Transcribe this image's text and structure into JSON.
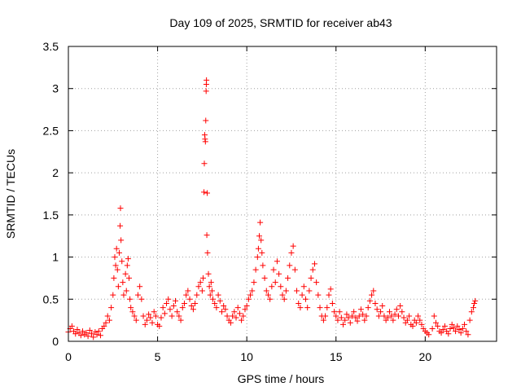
{
  "chart_data": {
    "type": "scatter",
    "title": "Day 109 of 2025, SRMTID for receiver ab43",
    "xlabel": "GPS time / hours",
    "ylabel": "SRMTID / TECUs",
    "xlim": [
      0,
      24
    ],
    "ylim": [
      0,
      3.5
    ],
    "x_ticks": [
      0,
      5,
      10,
      15,
      20
    ],
    "x_tick_labels": [
      "0",
      "5",
      "10",
      "15",
      "20"
    ],
    "y_ticks": [
      0,
      0.5,
      1,
      1.5,
      2,
      2.5,
      3,
      3.5
    ],
    "y_tick_labels": [
      "0",
      "0.5",
      "1",
      "1.5",
      "2",
      "2.5",
      "3",
      "3.5"
    ],
    "grid": true,
    "marker": "+",
    "color": "#ff0000",
    "series": [
      {
        "name": "SRMTID",
        "points": [
          [
            0.0,
            0.11
          ],
          [
            0.1,
            0.15
          ],
          [
            0.2,
            0.18
          ],
          [
            0.3,
            0.12
          ],
          [
            0.4,
            0.09
          ],
          [
            0.5,
            0.14
          ],
          [
            0.6,
            0.1
          ],
          [
            0.7,
            0.07
          ],
          [
            0.8,
            0.12
          ],
          [
            0.9,
            0.08
          ],
          [
            1.0,
            0.1
          ],
          [
            1.1,
            0.06
          ],
          [
            1.2,
            0.13
          ],
          [
            1.3,
            0.09
          ],
          [
            1.4,
            0.05
          ],
          [
            1.5,
            0.11
          ],
          [
            1.6,
            0.08
          ],
          [
            1.7,
            0.12
          ],
          [
            1.8,
            0.07
          ],
          [
            1.9,
            0.15
          ],
          [
            2.0,
            0.18
          ],
          [
            2.1,
            0.22
          ],
          [
            2.2,
            0.3
          ],
          [
            2.3,
            0.25
          ],
          [
            2.4,
            0.4
          ],
          [
            2.5,
            0.55
          ],
          [
            2.55,
            0.75
          ],
          [
            2.6,
            1.0
          ],
          [
            2.65,
            0.9
          ],
          [
            2.7,
            1.1
          ],
          [
            2.75,
            0.85
          ],
          [
            2.8,
            0.65
          ],
          [
            2.85,
            1.05
          ],
          [
            2.9,
            1.37
          ],
          [
            2.92,
            1.58
          ],
          [
            2.95,
            1.2
          ],
          [
            3.0,
            0.95
          ],
          [
            3.05,
            0.7
          ],
          [
            3.1,
            0.55
          ],
          [
            3.2,
            0.8
          ],
          [
            3.25,
            0.6
          ],
          [
            3.3,
            0.9
          ],
          [
            3.35,
            0.98
          ],
          [
            3.4,
            0.75
          ],
          [
            3.45,
            0.5
          ],
          [
            3.5,
            0.4
          ],
          [
            3.6,
            0.35
          ],
          [
            3.7,
            0.3
          ],
          [
            3.8,
            0.25
          ],
          [
            3.9,
            0.55
          ],
          [
            4.0,
            0.65
          ],
          [
            4.1,
            0.5
          ],
          [
            4.2,
            0.3
          ],
          [
            4.3,
            0.2
          ],
          [
            4.4,
            0.25
          ],
          [
            4.5,
            0.32
          ],
          [
            4.6,
            0.28
          ],
          [
            4.7,
            0.22
          ],
          [
            4.8,
            0.35
          ],
          [
            4.9,
            0.3
          ],
          [
            5.0,
            0.2
          ],
          [
            5.1,
            0.18
          ],
          [
            5.2,
            0.28
          ],
          [
            5.3,
            0.4
          ],
          [
            5.4,
            0.33
          ],
          [
            5.5,
            0.45
          ],
          [
            5.6,
            0.5
          ],
          [
            5.7,
            0.38
          ],
          [
            5.8,
            0.3
          ],
          [
            5.9,
            0.42
          ],
          [
            6.0,
            0.48
          ],
          [
            6.1,
            0.35
          ],
          [
            6.2,
            0.3
          ],
          [
            6.3,
            0.25
          ],
          [
            6.4,
            0.4
          ],
          [
            6.5,
            0.45
          ],
          [
            6.6,
            0.55
          ],
          [
            6.7,
            0.6
          ],
          [
            6.8,
            0.5
          ],
          [
            6.9,
            0.42
          ],
          [
            7.0,
            0.38
          ],
          [
            7.1,
            0.45
          ],
          [
            7.2,
            0.55
          ],
          [
            7.3,
            0.65
          ],
          [
            7.4,
            0.7
          ],
          [
            7.5,
            0.6
          ],
          [
            7.55,
            0.75
          ],
          [
            7.6,
            1.77
          ],
          [
            7.62,
            2.11
          ],
          [
            7.64,
            2.45
          ],
          [
            7.66,
            2.4
          ],
          [
            7.68,
            2.37
          ],
          [
            7.7,
            2.62
          ],
          [
            7.72,
            2.97
          ],
          [
            7.73,
            3.05
          ],
          [
            7.74,
            3.1
          ],
          [
            7.76,
            1.26
          ],
          [
            7.78,
            1.76
          ],
          [
            7.8,
            1.05
          ],
          [
            7.85,
            0.8
          ],
          [
            7.9,
            0.65
          ],
          [
            7.95,
            0.55
          ],
          [
            8.0,
            0.7
          ],
          [
            8.05,
            0.6
          ],
          [
            8.1,
            0.5
          ],
          [
            8.2,
            0.45
          ],
          [
            8.3,
            0.4
          ],
          [
            8.4,
            0.55
          ],
          [
            8.5,
            0.48
          ],
          [
            8.6,
            0.35
          ],
          [
            8.7,
            0.42
          ],
          [
            8.8,
            0.38
          ],
          [
            8.9,
            0.3
          ],
          [
            9.0,
            0.25
          ],
          [
            9.1,
            0.22
          ],
          [
            9.2,
            0.3
          ],
          [
            9.3,
            0.35
          ],
          [
            9.4,
            0.28
          ],
          [
            9.5,
            0.4
          ],
          [
            9.6,
            0.33
          ],
          [
            9.7,
            0.25
          ],
          [
            9.8,
            0.3
          ],
          [
            9.9,
            0.38
          ],
          [
            10.0,
            0.42
          ],
          [
            10.1,
            0.5
          ],
          [
            10.2,
            0.55
          ],
          [
            10.3,
            0.6
          ],
          [
            10.4,
            0.7
          ],
          [
            10.5,
            0.85
          ],
          [
            10.6,
            1.0
          ],
          [
            10.65,
            1.1
          ],
          [
            10.7,
            1.25
          ],
          [
            10.75,
            1.41
          ],
          [
            10.8,
            1.2
          ],
          [
            10.85,
            1.05
          ],
          [
            10.9,
            0.9
          ],
          [
            11.0,
            0.75
          ],
          [
            11.1,
            0.6
          ],
          [
            11.2,
            0.55
          ],
          [
            11.3,
            0.5
          ],
          [
            11.4,
            0.65
          ],
          [
            11.5,
            0.85
          ],
          [
            11.6,
            0.7
          ],
          [
            11.7,
            0.95
          ],
          [
            11.8,
            0.8
          ],
          [
            11.9,
            0.65
          ],
          [
            12.0,
            0.55
          ],
          [
            12.1,
            0.5
          ],
          [
            12.2,
            0.6
          ],
          [
            12.3,
            0.75
          ],
          [
            12.4,
            0.9
          ],
          [
            12.5,
            1.05
          ],
          [
            12.6,
            1.13
          ],
          [
            12.7,
            0.85
          ],
          [
            12.8,
            0.6
          ],
          [
            12.9,
            0.45
          ],
          [
            13.0,
            0.4
          ],
          [
            13.1,
            0.55
          ],
          [
            13.2,
            0.65
          ],
          [
            13.3,
            0.5
          ],
          [
            13.4,
            0.4
          ],
          [
            13.5,
            0.6
          ],
          [
            13.6,
            0.75
          ],
          [
            13.7,
            0.85
          ],
          [
            13.8,
            0.92
          ],
          [
            13.9,
            0.7
          ],
          [
            14.0,
            0.55
          ],
          [
            14.1,
            0.4
          ],
          [
            14.2,
            0.3
          ],
          [
            14.3,
            0.25
          ],
          [
            14.4,
            0.3
          ],
          [
            14.5,
            0.4
          ],
          [
            14.6,
            0.55
          ],
          [
            14.7,
            0.62
          ],
          [
            14.8,
            0.45
          ],
          [
            14.9,
            0.35
          ],
          [
            15.0,
            0.3
          ],
          [
            15.1,
            0.25
          ],
          [
            15.2,
            0.35
          ],
          [
            15.3,
            0.28
          ],
          [
            15.4,
            0.2
          ],
          [
            15.5,
            0.25
          ],
          [
            15.6,
            0.32
          ],
          [
            15.7,
            0.28
          ],
          [
            15.8,
            0.22
          ],
          [
            15.9,
            0.3
          ],
          [
            16.0,
            0.35
          ],
          [
            16.1,
            0.28
          ],
          [
            16.2,
            0.24
          ],
          [
            16.3,
            0.3
          ],
          [
            16.4,
            0.38
          ],
          [
            16.5,
            0.32
          ],
          [
            16.6,
            0.25
          ],
          [
            16.7,
            0.3
          ],
          [
            16.8,
            0.4
          ],
          [
            16.9,
            0.48
          ],
          [
            17.0,
            0.55
          ],
          [
            17.1,
            0.6
          ],
          [
            17.2,
            0.45
          ],
          [
            17.3,
            0.38
          ],
          [
            17.4,
            0.3
          ],
          [
            17.5,
            0.35
          ],
          [
            17.6,
            0.42
          ],
          [
            17.7,
            0.3
          ],
          [
            17.8,
            0.25
          ],
          [
            17.9,
            0.28
          ],
          [
            18.0,
            0.35
          ],
          [
            18.1,
            0.3
          ],
          [
            18.2,
            0.25
          ],
          [
            18.3,
            0.32
          ],
          [
            18.4,
            0.38
          ],
          [
            18.5,
            0.3
          ],
          [
            18.6,
            0.42
          ],
          [
            18.7,
            0.35
          ],
          [
            18.8,
            0.28
          ],
          [
            18.9,
            0.22
          ],
          [
            19.0,
            0.25
          ],
          [
            19.1,
            0.3
          ],
          [
            19.2,
            0.2
          ],
          [
            19.3,
            0.18
          ],
          [
            19.4,
            0.25
          ],
          [
            19.5,
            0.22
          ],
          [
            19.6,
            0.3
          ],
          [
            19.7,
            0.25
          ],
          [
            19.8,
            0.2
          ],
          [
            19.9,
            0.15
          ],
          [
            20.0,
            0.12
          ],
          [
            20.1,
            0.1
          ],
          [
            20.2,
            0.08
          ],
          [
            20.4,
            0.15
          ],
          [
            20.5,
            0.3
          ],
          [
            20.6,
            0.22
          ],
          [
            20.7,
            0.18
          ],
          [
            20.8,
            0.12
          ],
          [
            20.9,
            0.1
          ],
          [
            21.0,
            0.14
          ],
          [
            21.1,
            0.18
          ],
          [
            21.2,
            0.12
          ],
          [
            21.3,
            0.09
          ],
          [
            21.4,
            0.15
          ],
          [
            21.5,
            0.2
          ],
          [
            21.6,
            0.16
          ],
          [
            21.7,
            0.12
          ],
          [
            21.8,
            0.18
          ],
          [
            21.9,
            0.14
          ],
          [
            22.0,
            0.1
          ],
          [
            22.1,
            0.15
          ],
          [
            22.2,
            0.2
          ],
          [
            22.3,
            0.12
          ],
          [
            22.4,
            0.08
          ],
          [
            22.5,
            0.25
          ],
          [
            22.6,
            0.35
          ],
          [
            22.7,
            0.4
          ],
          [
            22.75,
            0.45
          ],
          [
            22.8,
            0.48
          ]
        ]
      }
    ]
  }
}
